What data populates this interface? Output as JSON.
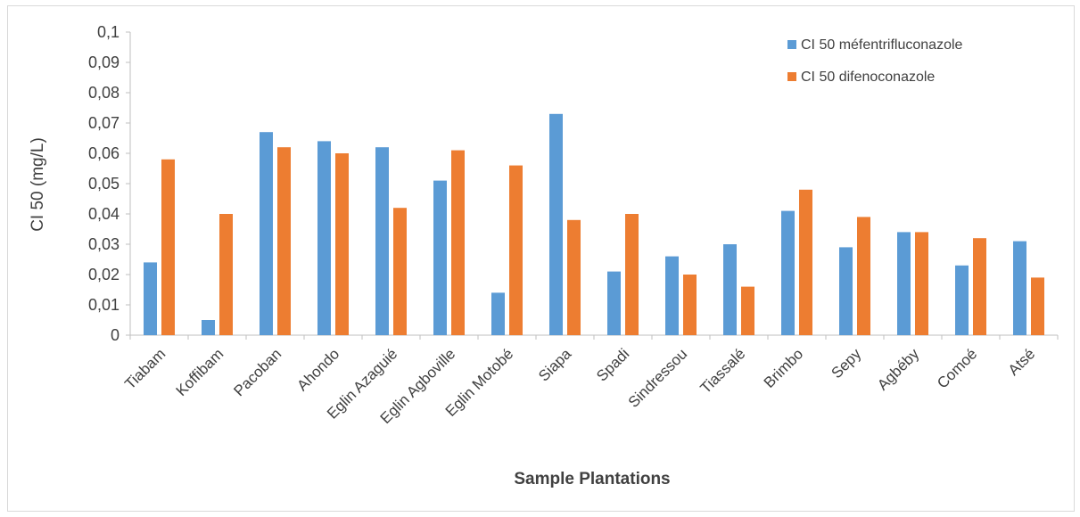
{
  "chart_data": {
    "type": "bar",
    "categories": [
      "Tiabam",
      "Koffibam",
      "Pacoban",
      "Ahondo",
      "Eglin Azaguié",
      "Eglin Agboville",
      "Eglin Motobé",
      "Siapa",
      "Spadi",
      "Sindressou",
      "Tiassalé",
      "Brimbo",
      "Sepy",
      "Agbéby",
      "Comoé",
      "Atsé"
    ],
    "series": [
      {
        "name": "CI 50 méfentrifluconazole",
        "color": "#5b9bd5",
        "values": [
          0.024,
          0.005,
          0.067,
          0.064,
          0.062,
          0.051,
          0.014,
          0.073,
          0.021,
          0.026,
          0.03,
          0.041,
          0.029,
          0.034,
          0.023,
          0.031
        ]
      },
      {
        "name": "CI 50 difenoconazole",
        "color": "#ed7d31",
        "values": [
          0.058,
          0.04,
          0.062,
          0.06,
          0.042,
          0.061,
          0.056,
          0.038,
          0.04,
          0.02,
          0.016,
          0.048,
          0.039,
          0.034,
          0.032,
          0.019
        ]
      }
    ],
    "y_ticks": [
      "0",
      "0,01",
      "0,02",
      "0,03",
      "0,04",
      "0,05",
      "0,06",
      "0,07",
      "0,08",
      "0,09",
      "0,1"
    ],
    "ylim": [
      0,
      0.1
    ],
    "xlabel": "Sample Plantations",
    "ylabel": "CI 50 (mg/L)",
    "legend_position": "top-right",
    "grid": false
  }
}
